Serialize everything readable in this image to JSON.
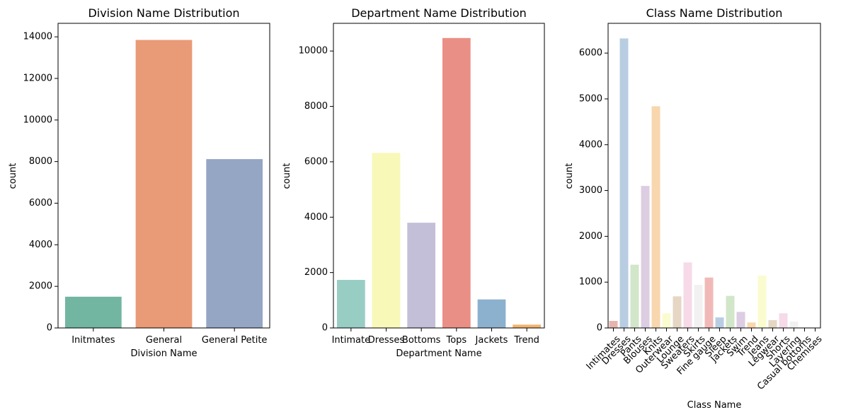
{
  "chart_data": [
    {
      "type": "bar",
      "title": "Division Name Distribution",
      "xlabel": "Division Name",
      "ylabel": "count",
      "ylim": [
        0,
        14650
      ],
      "yticks": [
        0,
        2000,
        4000,
        6000,
        8000,
        10000,
        12000,
        14000
      ],
      "categories": [
        "Initmates",
        "General",
        "General Petite"
      ],
      "values": [
        1502,
        13850,
        8120
      ],
      "colors": [
        "#72b5a0",
        "#e99a76",
        "#95a6c5"
      ],
      "xtick_rotation": 0
    },
    {
      "type": "bar",
      "title": "Department Name Distribution",
      "xlabel": "Department Name",
      "ylabel": "count",
      "ylim": [
        0,
        11000
      ],
      "yticks": [
        0,
        2000,
        4000,
        6000,
        8000,
        10000
      ],
      "categories": [
        "Intimate",
        "Dresses",
        "Bottoms",
        "Tops",
        "Jackets",
        "Trend"
      ],
      "values": [
        1735,
        6320,
        3800,
        10470,
        1030,
        120
      ],
      "colors": [
        "#98cdc4",
        "#f8f8b9",
        "#c3bfd8",
        "#ea8f85",
        "#8bb1ce",
        "#f2b36e"
      ],
      "xtick_rotation": 0
    },
    {
      "type": "bar",
      "title": "Class Name Distribution",
      "xlabel": "Class Name",
      "ylabel": "count",
      "ylim": [
        0,
        6650
      ],
      "yticks": [
        0,
        1000,
        2000,
        3000,
        4000,
        5000,
        6000
      ],
      "categories": [
        "Intimates",
        "Dresses",
        "Pants",
        "Blouses",
        "Knits",
        "Outerwear",
        "Lounge",
        "Sweaters",
        "Skirts",
        "Fine gauge",
        "Sleep",
        "Jackets",
        "Swim",
        "Trend",
        "Jeans",
        "Legwear",
        "Shorts",
        "Layering",
        "Casual bottoms",
        "Chemises"
      ],
      "values": [
        154,
        6320,
        1380,
        3100,
        4840,
        320,
        690,
        1430,
        940,
        1100,
        230,
        700,
        350,
        120,
        1140,
        170,
        320,
        140,
        2,
        1
      ],
      "colors": [
        "#e6b4ae",
        "#b8cde2",
        "#d2e6c9",
        "#dccde2",
        "#f8d7ae",
        "#fbfbd0",
        "#e5d7c4",
        "#f6dae8",
        "#f1f1f1",
        "#f0b9b7",
        "#b8cde2",
        "#d2e6c9",
        "#dccde2",
        "#f8d7ae",
        "#fbfbd0",
        "#e5d7c4",
        "#f6dae8",
        "#f1f1f1",
        "#e6b4ae",
        "#b8cde2"
      ],
      "xtick_rotation": -45
    }
  ]
}
